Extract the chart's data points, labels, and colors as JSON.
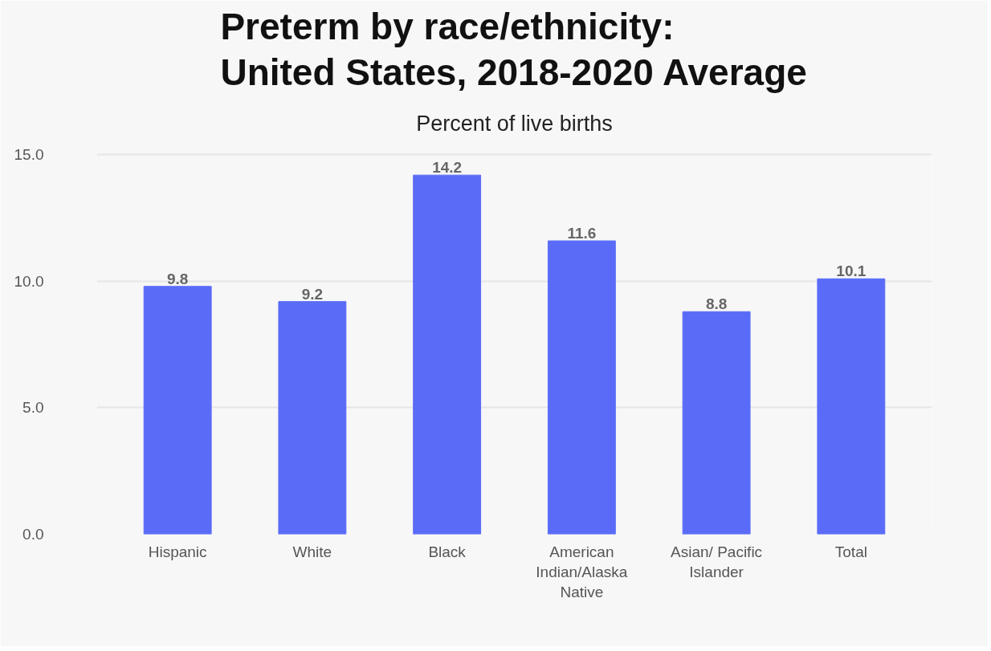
{
  "chart_data": {
    "type": "bar",
    "title": "Preterm by race/ethnicity:\nUnited States, 2018-2020 Average",
    "subtitle": "Percent of live births",
    "categories": [
      "Hispanic",
      "White",
      "Black",
      "American Indian/Alaska Native",
      "Asian/ Pacific Islander",
      "Total"
    ],
    "values": [
      9.8,
      9.2,
      14.2,
      11.6,
      8.8,
      10.1
    ],
    "color": "#5a6cf7",
    "ylim": [
      0,
      15.3
    ],
    "yticks": [
      {
        "value": 0,
        "label": "0.0"
      },
      {
        "value": 5,
        "label": "5.0"
      },
      {
        "value": 10,
        "label": "10.0"
      },
      {
        "value": 15,
        "label": "15.0"
      }
    ],
    "grid": "y",
    "data_labels": true
  }
}
